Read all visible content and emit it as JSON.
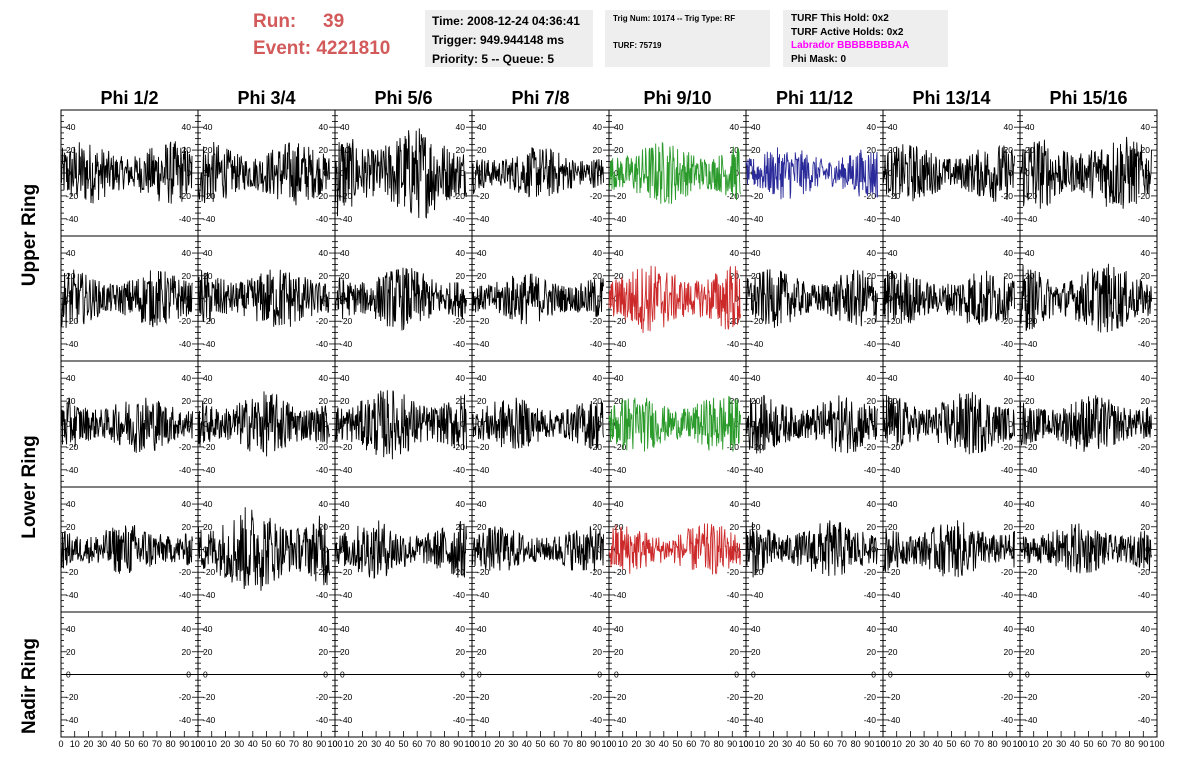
{
  "header": {
    "run_label": "Run:",
    "run_value": "39",
    "event_label": "Event:",
    "event_value": "4221810",
    "time": "Time: 2008-12-24 04:36:41",
    "trigger": "Trigger: 949.944148 ms",
    "priority": "Priority: 5 -- Queue: 5",
    "trig_num": "Trig Num: 10174 -- Trig Type: RF",
    "turf": "TURF: 75719",
    "turf_this_hold": "TURF This Hold: 0x2",
    "turf_active_holds": "TURF Active Holds: 0x2",
    "labrador": "Labrador BBBBBBBBAA",
    "phi_mask": "Phi Mask: 0"
  },
  "chart_data": {
    "type": "line",
    "columns": [
      "Phi 1/2",
      "Phi 3/4",
      "Phi 5/6",
      "Phi 7/8",
      "Phi 9/10",
      "Phi 11/12",
      "Phi 13/14",
      "Phi 15/16"
    ],
    "row_groups": [
      {
        "label": "Upper Ring",
        "rows": [
          0,
          1
        ]
      },
      {
        "label": "Lower Ring",
        "rows": [
          2,
          3
        ]
      },
      {
        "label": "Nadir Ring",
        "rows": [
          4
        ]
      }
    ],
    "ylim": [
      -55,
      55
    ],
    "yticks": [
      -40,
      -20,
      0,
      20,
      40
    ],
    "xlim": [
      0,
      100
    ],
    "xticks": [
      0,
      10,
      20,
      30,
      40,
      50,
      60,
      70,
      80,
      90,
      100
    ],
    "grid": false,
    "colors": {
      "default": "#000000",
      "green": "#2a9a2a",
      "blue": "#2a2a9a",
      "red": "#cc2a2a"
    },
    "panel_colors": [
      [
        "default",
        "default",
        "default",
        "default",
        "green",
        "blue",
        "default",
        "default"
      ],
      [
        "default",
        "default",
        "default",
        "default",
        "red",
        "default",
        "default",
        "default"
      ],
      [
        "default",
        "default",
        "default",
        "default",
        "green",
        "default",
        "default",
        "default"
      ],
      [
        "default",
        "default",
        "default",
        "default",
        "red",
        "default",
        "default",
        "default"
      ],
      [
        "default",
        "default",
        "default",
        "default",
        "default",
        "default",
        "default",
        "default"
      ]
    ],
    "panel_amplitudes": [
      [
        22,
        22,
        32,
        18,
        22,
        18,
        20,
        26
      ],
      [
        20,
        22,
        22,
        18,
        24,
        20,
        20,
        24
      ],
      [
        20,
        22,
        24,
        18,
        20,
        20,
        22,
        20
      ],
      [
        18,
        30,
        20,
        16,
        18,
        20,
        20,
        18
      ],
      [
        0,
        0,
        0,
        0,
        0,
        0,
        0,
        0
      ]
    ]
  }
}
